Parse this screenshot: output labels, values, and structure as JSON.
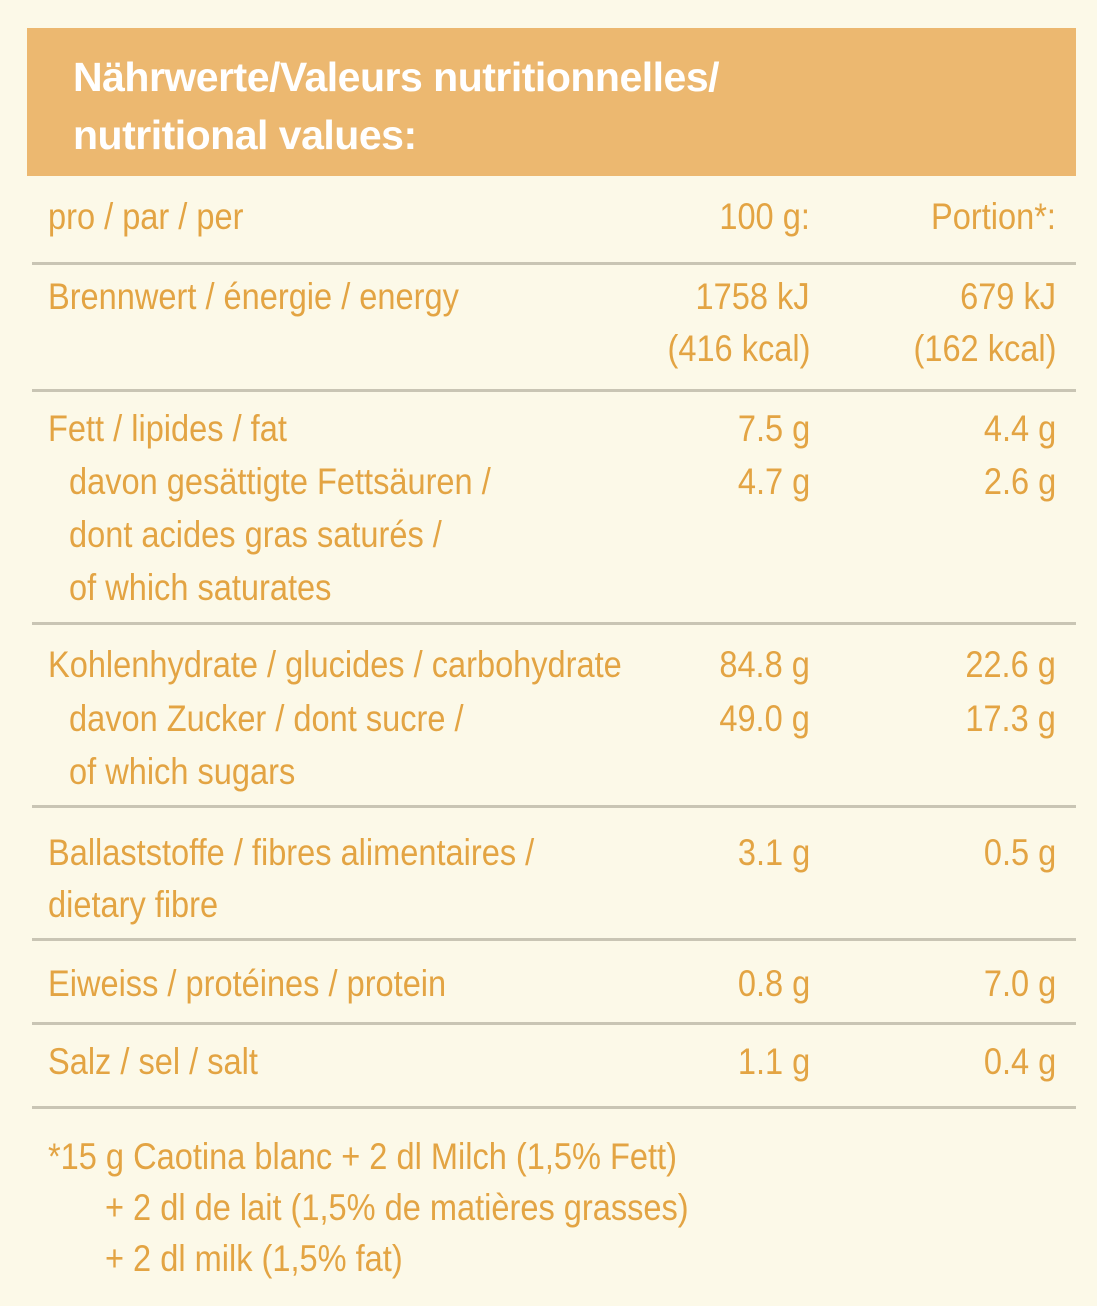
{
  "header": {
    "line1": "Nährwerte/Valeurs nutritionnelles/",
    "line2": "nutritional values:"
  },
  "columns": {
    "label": "pro / par / per",
    "col1": "100 g:",
    "col2": "Portion*:"
  },
  "rows": {
    "energy": {
      "label": "Brennwert / énergie / energy",
      "kj_100g": "1758 kJ",
      "kcal_100g": "(416 kcal)",
      "kj_portion": "679 kJ",
      "kcal_portion": "(162 kcal)"
    },
    "fat": {
      "label": "Fett / lipides / fat",
      "v100g": "7.5 g",
      "vportion": "4.4 g",
      "sub_label_1": "davon gesättigte Fettsäuren /",
      "sub_label_2": "dont acides gras saturés /",
      "sub_label_3": "of which saturates",
      "sub_v100g": "4.7 g",
      "sub_vportion": "2.6 g"
    },
    "carbs": {
      "label": "Kohlenhydrate / glucides / carbohydrate",
      "v100g": "84.8 g",
      "vportion": "22.6 g",
      "sub_label_1": "davon Zucker / dont sucre /",
      "sub_label_2": "of which sugars",
      "sub_v100g": "49.0 g",
      "sub_vportion": "17.3 g"
    },
    "fibre": {
      "label_1": "Ballaststoffe / fibres alimentaires /",
      "label_2": "dietary fibre",
      "v100g": "3.1 g",
      "vportion": "0.5 g"
    },
    "protein": {
      "label": "Eiweiss / protéines / protein",
      "v100g": "0.8 g",
      "vportion": "7.0 g"
    },
    "salt": {
      "label": "Salz / sel / salt",
      "v100g": "1.1 g",
      "vportion": "0.4 g"
    }
  },
  "footnote": {
    "line1": "*15 g Caotina blanc + 2 dl Milch (1,5% Fett)",
    "line2": "+ 2 dl de lait (1,5% de matières grasses)",
    "line3": "+ 2 dl milk (1,5% fat)"
  }
}
